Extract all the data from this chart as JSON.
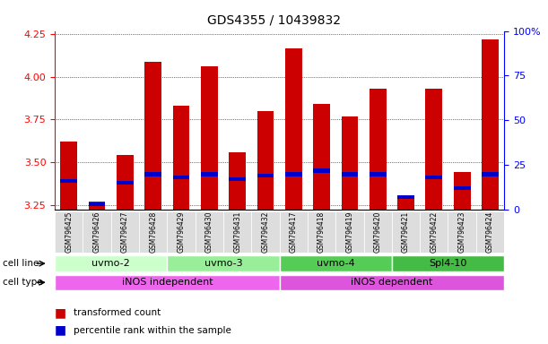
{
  "title": "GDS4355 / 10439832",
  "samples": [
    "GSM796425",
    "GSM796426",
    "GSM796427",
    "GSM796428",
    "GSM796429",
    "GSM796430",
    "GSM796431",
    "GSM796432",
    "GSM796417",
    "GSM796418",
    "GSM796419",
    "GSM796420",
    "GSM796421",
    "GSM796422",
    "GSM796423",
    "GSM796424"
  ],
  "transformed_count": [
    3.62,
    3.27,
    3.54,
    4.09,
    3.83,
    4.06,
    3.56,
    3.8,
    4.17,
    3.84,
    3.77,
    3.93,
    3.3,
    3.93,
    3.44,
    4.22
  ],
  "percentile_rank": [
    16,
    3,
    15,
    20,
    18,
    20,
    17,
    19,
    20,
    22,
    20,
    20,
    7,
    18,
    12,
    20
  ],
  "bar_color_red": "#cc0000",
  "bar_color_blue": "#0000cc",
  "ylim_left": [
    3.22,
    4.27
  ],
  "ylim_right": [
    0,
    100
  ],
  "yticks_left": [
    3.25,
    3.5,
    3.75,
    4.0,
    4.25
  ],
  "yticks_right": [
    0,
    25,
    50,
    75,
    100
  ],
  "cell_line_groups": [
    {
      "label": "uvmo-2",
      "start": 0,
      "end": 4,
      "color": "#ccffcc"
    },
    {
      "label": "uvmo-3",
      "start": 4,
      "end": 8,
      "color": "#99ee99"
    },
    {
      "label": "uvmo-4",
      "start": 8,
      "end": 12,
      "color": "#55cc55"
    },
    {
      "label": "Spl4-10",
      "start": 12,
      "end": 16,
      "color": "#44bb44"
    }
  ],
  "cell_type_groups": [
    {
      "label": "iNOS independent",
      "start": 0,
      "end": 8,
      "color": "#ee66ee"
    },
    {
      "label": "iNOS dependent",
      "start": 8,
      "end": 16,
      "color": "#dd55dd"
    }
  ],
  "legend_red_label": "transformed count",
  "legend_blue_label": "percentile rank within the sample",
  "cell_line_label": "cell line",
  "cell_type_label": "cell type",
  "background_color": "#ffffff",
  "bar_width": 0.6
}
